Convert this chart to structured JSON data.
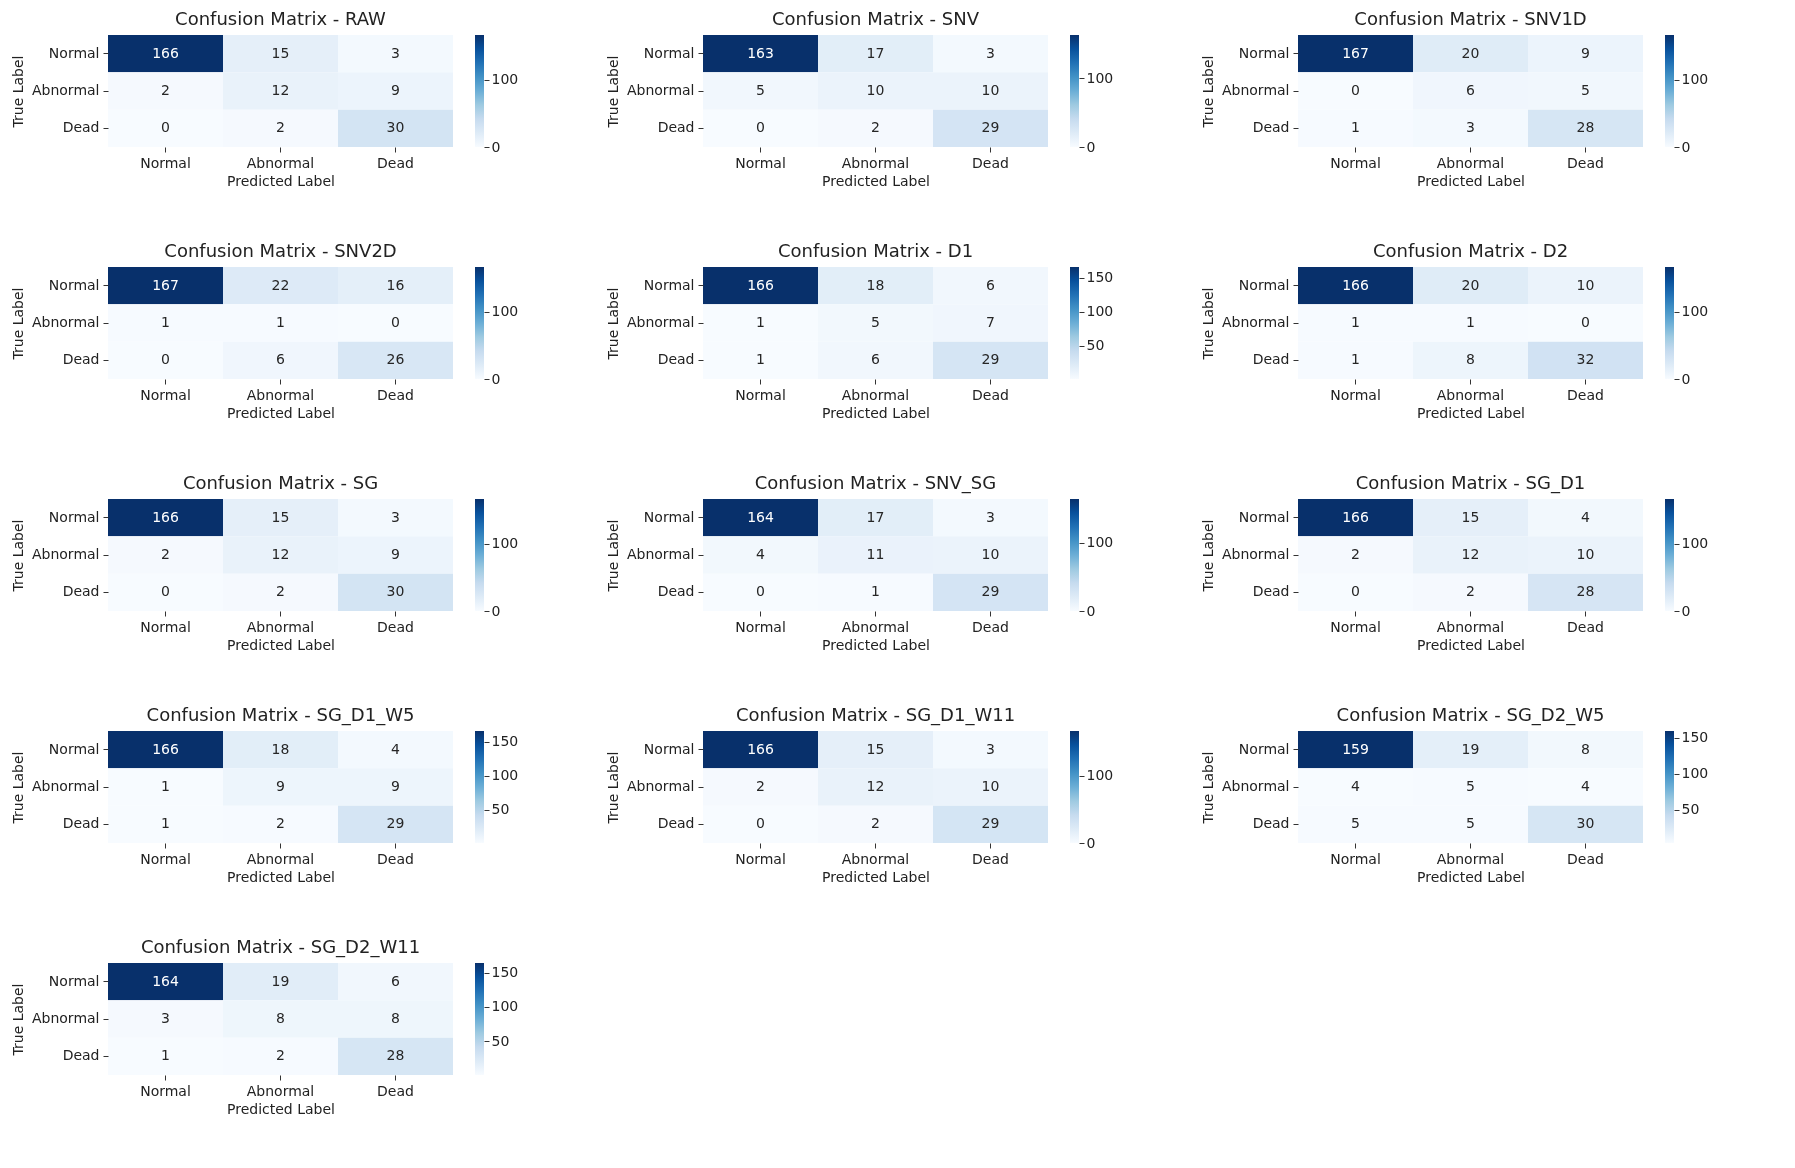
{
  "chart_data": [
    {
      "type": "heatmap",
      "title": "Confusion Matrix - RAW",
      "xlabel": "Predicted Label",
      "ylabel": "True Label",
      "categories": [
        "Normal",
        "Abnormal",
        "Dead"
      ],
      "y_categories": [
        "Normal",
        "Abnormal",
        "Dead"
      ],
      "cells": [
        [
          166,
          15,
          3
        ],
        [
          2,
          12,
          9
        ],
        [
          0,
          2,
          30
        ]
      ],
      "data_labels": true,
      "clim": [
        0,
        166
      ],
      "cticks": [
        0,
        100
      ]
    },
    {
      "type": "heatmap",
      "title": "Confusion Matrix - SNV",
      "xlabel": "Predicted Label",
      "ylabel": "True Label",
      "categories": [
        "Normal",
        "Abnormal",
        "Dead"
      ],
      "y_categories": [
        "Normal",
        "Abnormal",
        "Dead"
      ],
      "cells": [
        [
          163,
          17,
          3
        ],
        [
          5,
          10,
          10
        ],
        [
          0,
          2,
          29
        ]
      ],
      "data_labels": true,
      "clim": [
        0,
        163
      ],
      "cticks": [
        0,
        100
      ]
    },
    {
      "type": "heatmap",
      "title": "Confusion Matrix - SNV1D",
      "xlabel": "Predicted Label",
      "ylabel": "True Label",
      "categories": [
        "Normal",
        "Abnormal",
        "Dead"
      ],
      "y_categories": [
        "Normal",
        "Abnormal",
        "Dead"
      ],
      "cells": [
        [
          167,
          20,
          9
        ],
        [
          0,
          6,
          5
        ],
        [
          1,
          3,
          28
        ]
      ],
      "data_labels": true,
      "clim": [
        0,
        167
      ],
      "cticks": [
        0,
        100
      ]
    },
    {
      "type": "heatmap",
      "title": "Confusion Matrix - SNV2D",
      "xlabel": "Predicted Label",
      "ylabel": "True Label",
      "categories": [
        "Normal",
        "Abnormal",
        "Dead"
      ],
      "y_categories": [
        "Normal",
        "Abnormal",
        "Dead"
      ],
      "cells": [
        [
          167,
          22,
          16
        ],
        [
          1,
          1,
          0
        ],
        [
          0,
          6,
          26
        ]
      ],
      "data_labels": true,
      "clim": [
        0,
        167
      ],
      "cticks": [
        0,
        100
      ]
    },
    {
      "type": "heatmap",
      "title": "Confusion Matrix - D1",
      "xlabel": "Predicted Label",
      "ylabel": "True Label",
      "categories": [
        "Normal",
        "Abnormal",
        "Dead"
      ],
      "y_categories": [
        "Normal",
        "Abnormal",
        "Dead"
      ],
      "cells": [
        [
          166,
          18,
          6
        ],
        [
          1,
          5,
          7
        ],
        [
          1,
          6,
          29
        ]
      ],
      "data_labels": true,
      "clim": [
        1,
        166
      ],
      "cticks": [
        50,
        100,
        150
      ]
    },
    {
      "type": "heatmap",
      "title": "Confusion Matrix - D2",
      "xlabel": "Predicted Label",
      "ylabel": "True Label",
      "categories": [
        "Normal",
        "Abnormal",
        "Dead"
      ],
      "y_categories": [
        "Normal",
        "Abnormal",
        "Dead"
      ],
      "cells": [
        [
          166,
          20,
          10
        ],
        [
          1,
          1,
          0
        ],
        [
          1,
          8,
          32
        ]
      ],
      "data_labels": true,
      "clim": [
        0,
        166
      ],
      "cticks": [
        0,
        100
      ]
    },
    {
      "type": "heatmap",
      "title": "Confusion Matrix - SG",
      "xlabel": "Predicted Label",
      "ylabel": "True Label",
      "categories": [
        "Normal",
        "Abnormal",
        "Dead"
      ],
      "y_categories": [
        "Normal",
        "Abnormal",
        "Dead"
      ],
      "cells": [
        [
          166,
          15,
          3
        ],
        [
          2,
          12,
          9
        ],
        [
          0,
          2,
          30
        ]
      ],
      "data_labels": true,
      "clim": [
        0,
        166
      ],
      "cticks": [
        0,
        100
      ]
    },
    {
      "type": "heatmap",
      "title": "Confusion Matrix - SNV_SG",
      "xlabel": "Predicted Label",
      "ylabel": "True Label",
      "categories": [
        "Normal",
        "Abnormal",
        "Dead"
      ],
      "y_categories": [
        "Normal",
        "Abnormal",
        "Dead"
      ],
      "cells": [
        [
          164,
          17,
          3
        ],
        [
          4,
          11,
          10
        ],
        [
          0,
          1,
          29
        ]
      ],
      "data_labels": true,
      "clim": [
        0,
        164
      ],
      "cticks": [
        0,
        100
      ]
    },
    {
      "type": "heatmap",
      "title": "Confusion Matrix - SG_D1",
      "xlabel": "Predicted Label",
      "ylabel": "True Label",
      "categories": [
        "Normal",
        "Abnormal",
        "Dead"
      ],
      "y_categories": [
        "Normal",
        "Abnormal",
        "Dead"
      ],
      "cells": [
        [
          166,
          15,
          4
        ],
        [
          2,
          12,
          10
        ],
        [
          0,
          2,
          28
        ]
      ],
      "data_labels": true,
      "clim": [
        0,
        166
      ],
      "cticks": [
        0,
        100
      ]
    },
    {
      "type": "heatmap",
      "title": "Confusion Matrix - SG_D1_W5",
      "xlabel": "Predicted Label",
      "ylabel": "True Label",
      "categories": [
        "Normal",
        "Abnormal",
        "Dead"
      ],
      "y_categories": [
        "Normal",
        "Abnormal",
        "Dead"
      ],
      "cells": [
        [
          166,
          18,
          4
        ],
        [
          1,
          9,
          9
        ],
        [
          1,
          2,
          29
        ]
      ],
      "data_labels": true,
      "clim": [
        1,
        166
      ],
      "cticks": [
        50,
        100,
        150
      ]
    },
    {
      "type": "heatmap",
      "title": "Confusion Matrix - SG_D1_W11",
      "xlabel": "Predicted Label",
      "ylabel": "True Label",
      "categories": [
        "Normal",
        "Abnormal",
        "Dead"
      ],
      "y_categories": [
        "Normal",
        "Abnormal",
        "Dead"
      ],
      "cells": [
        [
          166,
          15,
          3
        ],
        [
          2,
          12,
          10
        ],
        [
          0,
          2,
          29
        ]
      ],
      "data_labels": true,
      "clim": [
        0,
        166
      ],
      "cticks": [
        0,
        100
      ]
    },
    {
      "type": "heatmap",
      "title": "Confusion Matrix - SG_D2_W5",
      "xlabel": "Predicted Label",
      "ylabel": "True Label",
      "categories": [
        "Normal",
        "Abnormal",
        "Dead"
      ],
      "y_categories": [
        "Normal",
        "Abnormal",
        "Dead"
      ],
      "cells": [
        [
          159,
          19,
          8
        ],
        [
          4,
          5,
          4
        ],
        [
          5,
          5,
          30
        ]
      ],
      "data_labels": true,
      "clim": [
        4,
        159
      ],
      "cticks": [
        50,
        100,
        150
      ]
    },
    {
      "type": "heatmap",
      "title": "Confusion Matrix - SG_D2_W11",
      "xlabel": "Predicted Label",
      "ylabel": "True Label",
      "categories": [
        "Normal",
        "Abnormal",
        "Dead"
      ],
      "y_categories": [
        "Normal",
        "Abnormal",
        "Dead"
      ],
      "cells": [
        [
          164,
          19,
          6
        ],
        [
          3,
          8,
          8
        ],
        [
          1,
          2,
          28
        ]
      ],
      "data_labels": true,
      "clim": [
        1,
        164
      ],
      "cticks": [
        50,
        100,
        150
      ]
    }
  ]
}
